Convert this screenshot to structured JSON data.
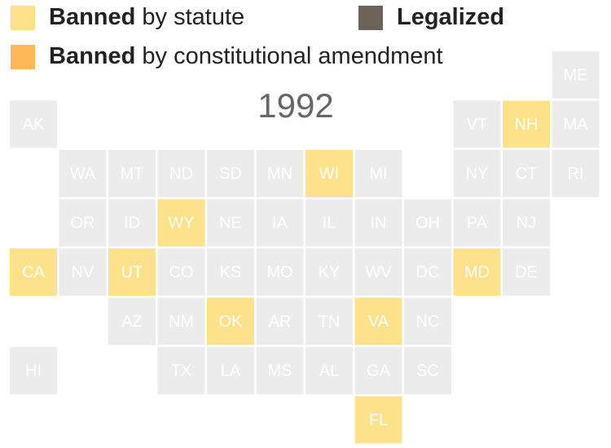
{
  "legend": [
    {
      "bold": "Banned",
      "text": " by statute",
      "color": "#fde28c"
    },
    {
      "bold": "Legalized",
      "color": "#6b6358"
    },
    {
      "bold": "Banned",
      "text": " by constitutional amendment",
      "color": "#fdb857"
    }
  ],
  "year": "1992",
  "default_color": "#ececec",
  "states": [
    {
      "label": "ME"
    },
    {
      "label": "AK"
    },
    {
      "label": "VT"
    },
    {
      "label": "NH",
      "color": "#fde28c"
    },
    {
      "label": "MA"
    },
    {
      "label": "WA"
    },
    {
      "label": "MT"
    },
    {
      "label": "ND"
    },
    {
      "label": "SD"
    },
    {
      "label": "MN"
    },
    {
      "label": "WI",
      "color": "#fde28c"
    },
    {
      "label": "MI"
    },
    {
      "label": "NY"
    },
    {
      "label": "CT"
    },
    {
      "label": "RI"
    },
    {
      "label": "OR"
    },
    {
      "label": "ID"
    },
    {
      "label": "WY",
      "color": "#fde28c"
    },
    {
      "label": "NE"
    },
    {
      "label": "IA"
    },
    {
      "label": "IL"
    },
    {
      "label": "IN"
    },
    {
      "label": "OH"
    },
    {
      "label": "PA"
    },
    {
      "label": "NJ"
    },
    {
      "label": "CA",
      "color": "#fde28c"
    },
    {
      "label": "NV"
    },
    {
      "label": "UT",
      "color": "#fde28c"
    },
    {
      "label": "CO"
    },
    {
      "label": "KS"
    },
    {
      "label": "MO"
    },
    {
      "label": "KY"
    },
    {
      "label": "WV"
    },
    {
      "label": "DC"
    },
    {
      "label": "MD",
      "color": "#fde28c"
    },
    {
      "label": "DE"
    },
    {
      "label": "AZ"
    },
    {
      "label": "NM"
    },
    {
      "label": "OK",
      "color": "#fde28c"
    },
    {
      "label": "AR"
    },
    {
      "label": "TN"
    },
    {
      "label": "VA",
      "color": "#fde28c"
    },
    {
      "label": "NC"
    },
    {
      "label": "HI"
    },
    {
      "label": "TX"
    },
    {
      "label": "LA"
    },
    {
      "label": "MS"
    },
    {
      "label": "AL"
    },
    {
      "label": "GA"
    },
    {
      "label": "SC"
    },
    {
      "label": "FL",
      "color": "#fde28c"
    }
  ]
}
